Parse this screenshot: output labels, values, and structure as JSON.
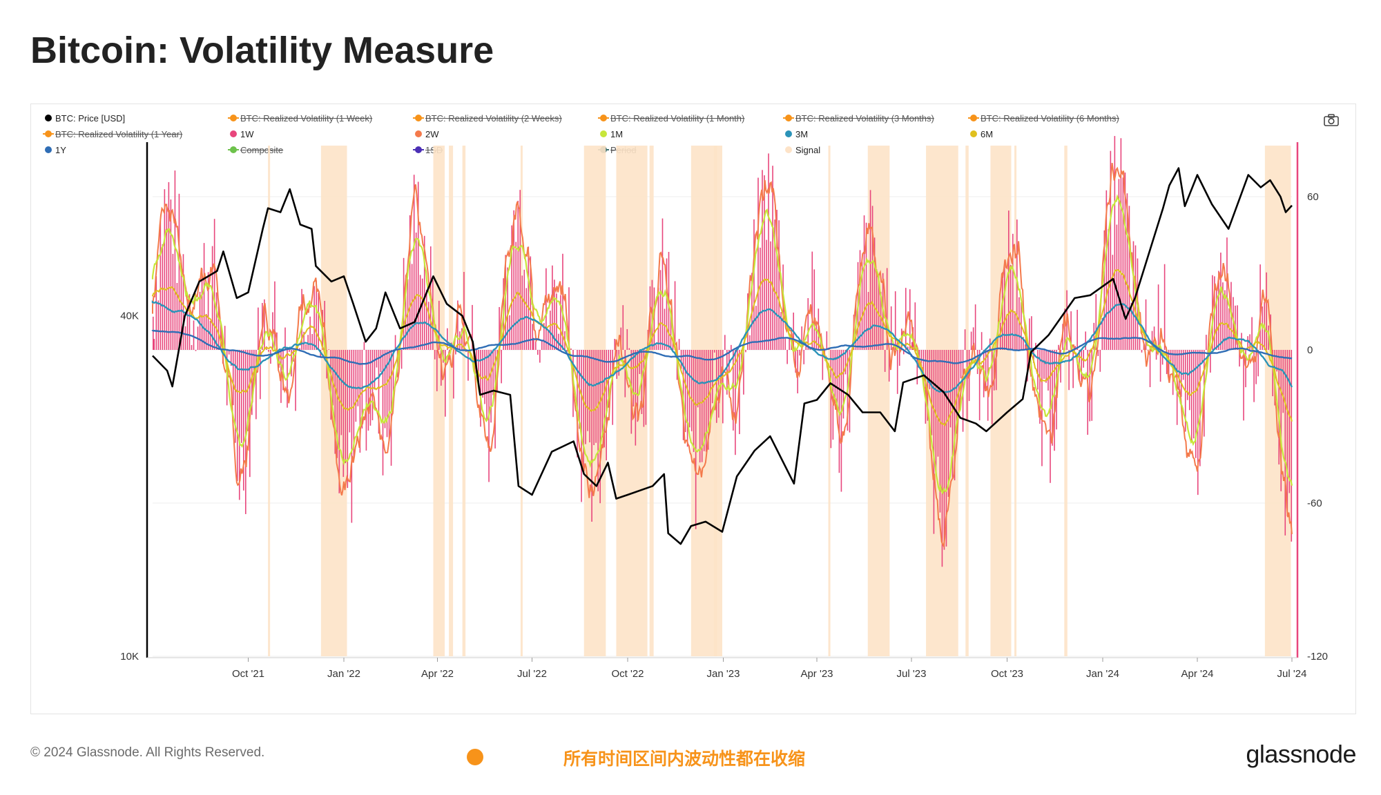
{
  "title": "Bitcoin: Volatility Measure",
  "footer": {
    "copyright": "© 2024 Glassnode. All Rights Reserved.",
    "note": "所有时间区间内波动性都在收缩",
    "brand": "glassnode"
  },
  "colors": {
    "price": "#000000",
    "w1": "#e8467c",
    "w2": "#f47a4b",
    "m1": "#c7e63a",
    "m3": "#2b93b8",
    "m6": "#e0c01e",
    "y1": "#2f6db5",
    "signal": "#fde3c8",
    "right_axis": "#e8467c"
  },
  "chart_data": {
    "type": "line",
    "title": "Bitcoin: Volatility Measure",
    "legend": [
      {
        "label": "BTC: Price [USD]",
        "color": "#000000",
        "active": true
      },
      {
        "label": "BTC: Realized Volatility (1 Week)",
        "color": "#f7931a",
        "active": false
      },
      {
        "label": "BTC: Realized Volatility (2 Weeks)",
        "color": "#f7931a",
        "active": false
      },
      {
        "label": "BTC: Realized Volatility (1 Month)",
        "color": "#f7931a",
        "active": false
      },
      {
        "label": "BTC: Realized Volatility (3 Months)",
        "color": "#f7931a",
        "active": false
      },
      {
        "label": "BTC: Realized Volatility (6 Months)",
        "color": "#f7931a",
        "active": false
      },
      {
        "label": "BTC: Realized Volatility (1 Year)",
        "color": "#f7931a",
        "active": false
      },
      {
        "label": "1W",
        "color": "#e8467c",
        "active": true
      },
      {
        "label": "2W",
        "color": "#f47a4b",
        "active": true
      },
      {
        "label": "1M",
        "color": "#c7e63a",
        "active": true
      },
      {
        "label": "3M",
        "color": "#2b93b8",
        "active": true
      },
      {
        "label": "6M",
        "color": "#e0c01e",
        "active": true
      },
      {
        "label": "1Y",
        "color": "#2f6db5",
        "active": true
      },
      {
        "label": "Composite",
        "color": "#6dc24b",
        "active": false
      },
      {
        "label": "1SD",
        "color": "#4b2fb5",
        "active": false
      },
      {
        "label": "Period",
        "color": "#3a6e6e",
        "active": false
      },
      {
        "label": "Signal",
        "color": "#fde3c8",
        "active": true
      }
    ],
    "x_ticks": [
      "Oct '21",
      "Jan '22",
      "Apr '22",
      "Jul '22",
      "Oct '22",
      "Jan '23",
      "Apr '23",
      "Jul '23",
      "Oct '23",
      "Jan '24",
      "Apr '24",
      "Jul '24"
    ],
    "x_range": [
      "2021-07-01",
      "2024-07-01"
    ],
    "y_left": {
      "scale": "log",
      "ticks": [
        "10K",
        "40K"
      ],
      "range": [
        10000,
        80000
      ]
    },
    "y_right": {
      "ticks": [
        "60",
        "0",
        "-60",
        "-120"
      ],
      "range": [
        -120,
        80
      ]
    },
    "price": {
      "name": "BTC: Price [USD]",
      "dates": [
        "2021-07-01",
        "2021-07-15",
        "2021-07-20",
        "2021-08-01",
        "2021-08-15",
        "2021-09-01",
        "2021-09-07",
        "2021-09-20",
        "2021-10-01",
        "2021-10-15",
        "2021-10-20",
        "2021-11-01",
        "2021-11-10",
        "2021-11-20",
        "2021-12-01",
        "2021-12-05",
        "2021-12-20",
        "2022-01-01",
        "2022-01-10",
        "2022-01-22",
        "2022-02-01",
        "2022-02-10",
        "2022-02-24",
        "2022-03-10",
        "2022-03-28",
        "2022-04-10",
        "2022-04-25",
        "2022-05-05",
        "2022-05-12",
        "2022-05-25",
        "2022-06-10",
        "2022-06-18",
        "2022-07-01",
        "2022-07-20",
        "2022-08-10",
        "2022-08-20",
        "2022-09-01",
        "2022-09-12",
        "2022-09-20",
        "2022-10-01",
        "2022-10-25",
        "2022-11-05",
        "2022-11-09",
        "2022-11-21",
        "2022-12-01",
        "2022-12-15",
        "2022-12-31",
        "2023-01-14",
        "2023-01-31",
        "2023-02-15",
        "2023-03-10",
        "2023-03-20",
        "2023-04-01",
        "2023-04-14",
        "2023-05-01",
        "2023-05-15",
        "2023-06-01",
        "2023-06-15",
        "2023-06-23",
        "2023-07-13",
        "2023-08-01",
        "2023-08-17",
        "2023-09-01",
        "2023-09-11",
        "2023-10-01",
        "2023-10-16",
        "2023-10-24",
        "2023-11-10",
        "2023-12-05",
        "2023-12-20",
        "2024-01-11",
        "2024-01-23",
        "2024-02-01",
        "2024-02-15",
        "2024-02-28",
        "2024-03-05",
        "2024-03-14",
        "2024-03-20",
        "2024-04-01",
        "2024-04-15",
        "2024-05-01",
        "2024-05-20",
        "2024-06-01",
        "2024-06-10",
        "2024-06-20",
        "2024-06-25",
        "2024-07-01"
      ],
      "values": [
        34000,
        32000,
        30000,
        40000,
        46000,
        48000,
        52000,
        43000,
        44000,
        57000,
        62000,
        61000,
        67000,
        58000,
        57000,
        49000,
        46000,
        47000,
        42000,
        36000,
        38000,
        44000,
        38000,
        39000,
        47000,
        42000,
        40000,
        36000,
        29000,
        29500,
        29000,
        20000,
        19300,
        23000,
        24000,
        21000,
        20000,
        22000,
        19000,
        19300,
        20000,
        21000,
        16500,
        15800,
        17000,
        17300,
        16600,
        20800,
        23100,
        24500,
        20200,
        28000,
        28400,
        30400,
        29000,
        27000,
        27000,
        25000,
        30500,
        31400,
        29300,
        26400,
        25800,
        25000,
        27000,
        28500,
        34500,
        37000,
        43000,
        43500,
        46500,
        39500,
        43000,
        52000,
        62000,
        68000,
        73000,
        62500,
        71000,
        63000,
        57000,
        71000,
        67500,
        69500,
        65000,
        61000,
        62700
      ]
    },
    "volatility_series": [
      {
        "name": "1W",
        "type": "bar"
      },
      {
        "name": "2W",
        "type": "line"
      },
      {
        "name": "1M",
        "type": "line"
      },
      {
        "name": "3M",
        "type": "line"
      },
      {
        "name": "6M",
        "type": "line"
      },
      {
        "name": "1Y",
        "type": "line"
      }
    ],
    "signal_periods": [
      [
        "2021-10-20",
        "2021-10-22"
      ],
      [
        "2021-12-10",
        "2022-01-04"
      ],
      [
        "2022-03-28",
        "2022-04-08"
      ],
      [
        "2022-04-12",
        "2022-04-16"
      ],
      [
        "2022-04-25",
        "2022-04-28"
      ],
      [
        "2022-06-20",
        "2022-06-22"
      ],
      [
        "2022-08-20",
        "2022-09-10"
      ],
      [
        "2022-09-20",
        "2022-10-20"
      ],
      [
        "2022-10-22",
        "2022-10-26"
      ],
      [
        "2022-12-01",
        "2022-12-31"
      ],
      [
        "2022-12-23",
        "2022-12-26"
      ],
      [
        "2023-04-12",
        "2023-04-14"
      ],
      [
        "2023-05-20",
        "2023-06-10"
      ],
      [
        "2023-07-15",
        "2023-08-15"
      ],
      [
        "2023-08-22",
        "2023-08-25"
      ],
      [
        "2023-09-15",
        "2023-10-05"
      ],
      [
        "2023-10-08",
        "2023-10-10"
      ],
      [
        "2023-11-25",
        "2023-11-28"
      ],
      [
        "2024-06-05",
        "2024-06-30"
      ]
    ]
  }
}
